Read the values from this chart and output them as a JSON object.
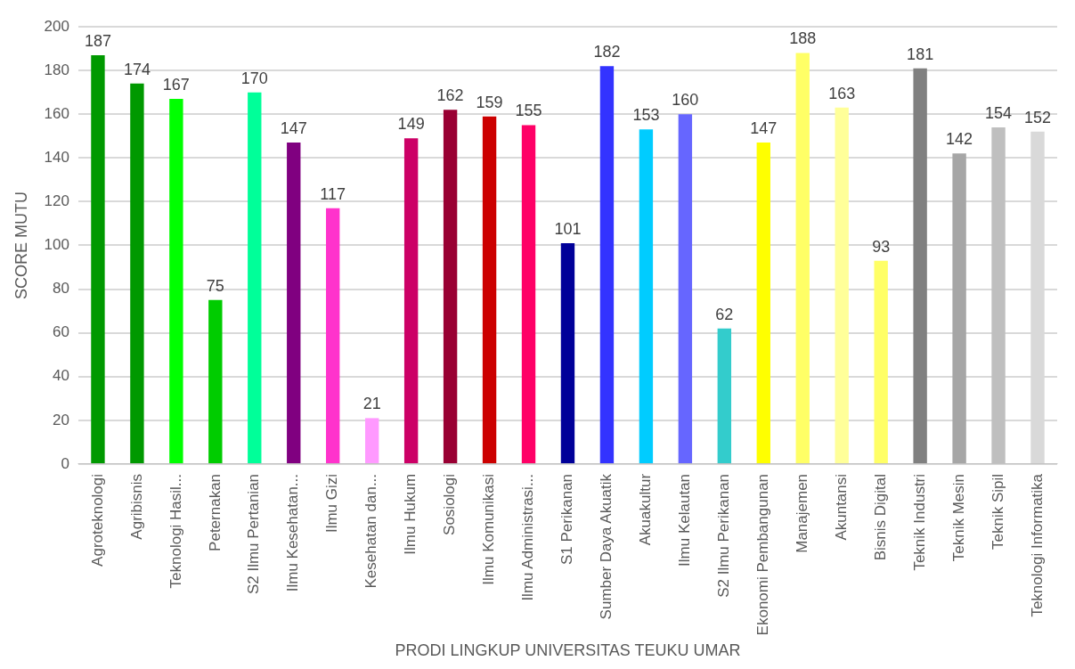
{
  "chart_data": {
    "type": "bar",
    "xlabel": "PRODI LINGKUP UNIVERSITAS TEUKU UMAR",
    "ylabel": "SCORE MUTU",
    "categories": [
      "Agroteknologi",
      "Agribisnis",
      "Teknologi Hasil...",
      "Peternakan",
      "S2 Ilmu Pertanian",
      "Ilmu Kesehatan...",
      "Ilmu Gizi",
      "Kesehatan dan...",
      "Ilmu Hukum",
      "Sosiologi",
      "Ilmu Komunikasi",
      "Ilmu Administrasi...",
      "S1 Perikanan",
      "Sumber Daya Akuatik",
      "Akuakultur",
      "Ilmu Kelautan",
      "S2 Ilmu Perikanan",
      "Ekonomi Pembangunan",
      "Manajemen",
      "Akuntansi",
      "Bisnis Digital",
      "Teknik Industri",
      "Teknik Mesin",
      "Teknik Sipil",
      "Teknologi Informatika"
    ],
    "values": [
      187,
      174,
      167,
      75,
      170,
      147,
      117,
      21,
      149,
      162,
      159,
      155,
      101,
      182,
      153,
      160,
      62,
      147,
      188,
      163,
      93,
      181,
      142,
      154,
      152
    ],
    "colors": [
      "#009900",
      "#009900",
      "#00ff00",
      "#00cc00",
      "#00ff99",
      "#800080",
      "#ff33cc",
      "#ff99ff",
      "#cc0066",
      "#990033",
      "#cc0000",
      "#ff0066",
      "#000099",
      "#3333ff",
      "#00ccff",
      "#6666ff",
      "#33cccc",
      "#ffff00",
      "#ffff66",
      "#ffff99",
      "#ffff66",
      "#808080",
      "#a6a6a6",
      "#bfbfbf",
      "#d9d9d9"
    ],
    "ylim": [
      0,
      200
    ],
    "yticks": [
      0,
      20,
      40,
      60,
      80,
      100,
      120,
      140,
      160,
      180,
      200
    ],
    "grid": "y",
    "data_labels": true,
    "legend": false
  }
}
